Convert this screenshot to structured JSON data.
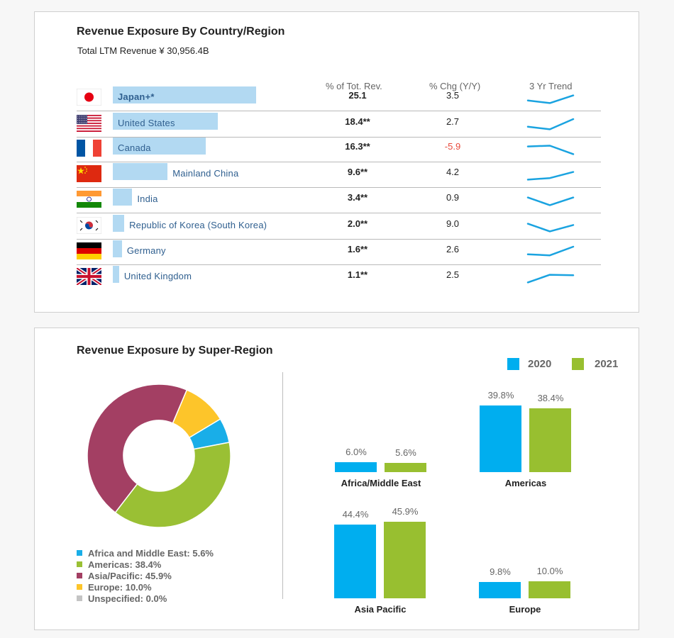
{
  "country_panel": {
    "title": "Revenue Exposure By Country/Region",
    "subtitle": "Total LTM Revenue ¥ 30,956.4B",
    "columns": {
      "pct": "% of Tot. Rev.",
      "chg": "% Chg (Y/Y)",
      "trend": "3 Yr Trend"
    },
    "trend_color": "#1aa3e0",
    "bar_color": "#b2d9f2"
  },
  "chart_data": [
    {
      "type": "table",
      "title": "Revenue Exposure By Country/Region",
      "subtitle": "Total LTM Revenue ¥ 30,956.4B",
      "columns": [
        "% of Tot. Rev.",
        "% Chg (Y/Y)",
        "3 Yr Trend"
      ],
      "rows": [
        {
          "country": "Japan+*",
          "flag": "japan-flag",
          "share": 25.1,
          "pct_label": "25.1",
          "chg_label": "3.5",
          "chg": 3.5,
          "trend": [
            2,
            1,
            4
          ]
        },
        {
          "country": "United States",
          "flag": "us-flag",
          "share": 18.4,
          "pct_label": "18.4**",
          "chg_label": "2.7",
          "chg": 2.7,
          "trend": [
            2,
            1,
            5
          ]
        },
        {
          "country": "Canada",
          "flag": "canada-flag",
          "share": 16.3,
          "pct_label": "16.3**",
          "chg_label": "-5.9",
          "chg": -5.9,
          "trend": [
            4,
            4.3,
            1
          ]
        },
        {
          "country": "Mainland China",
          "flag": "china-flag",
          "share": 9.6,
          "pct_label": "9.6**",
          "chg_label": "4.2",
          "chg": 4.2,
          "trend": [
            1,
            1.6,
            4
          ]
        },
        {
          "country": "India",
          "flag": "india-flag",
          "share": 3.4,
          "pct_label": "3.4**",
          "chg_label": "0.9",
          "chg": 0.9,
          "trend": [
            4,
            1,
            4
          ]
        },
        {
          "country": "Republic of Korea (South Korea)",
          "flag": "korea-flag",
          "share": 2.0,
          "pct_label": "2.0**",
          "chg_label": "9.0",
          "chg": 9.0,
          "trend": [
            4,
            1,
            3.5
          ]
        },
        {
          "country": "Germany",
          "flag": "germany-flag",
          "share": 1.6,
          "pct_label": "1.6**",
          "chg_label": "2.6",
          "chg": 2.6,
          "trend": [
            2,
            1.6,
            5
          ]
        },
        {
          "country": "United Kingdom",
          "flag": "uk-flag",
          "share": 1.1,
          "pct_label": "1.1**",
          "chg_label": "2.5",
          "chg": 2.5,
          "trend": [
            1,
            4,
            3.8
          ]
        }
      ]
    },
    {
      "type": "pie",
      "title": "Revenue Exposure by Super-Region",
      "slices": [
        {
          "label": "Africa and Middle East: 5.6%",
          "value": 5.6,
          "color": "#19aee8"
        },
        {
          "label": "Americas: 38.4%",
          "value": 38.4,
          "color": "#9ac034"
        },
        {
          "label": "Asia/Pacific: 45.9%",
          "value": 45.9,
          "color": "#a33f63"
        },
        {
          "label": "Europe: 10.0%",
          "value": 10.0,
          "color": "#fdc52a"
        },
        {
          "label": "Unspecified: 0.0%",
          "value": 0.0,
          "color": "#c4c4c4"
        }
      ]
    },
    {
      "type": "bar",
      "legend": {
        "placement": "top-right"
      },
      "series": [
        {
          "name": "2020",
          "color": "#00aeef"
        },
        {
          "name": "2021",
          "color": "#98bf30"
        }
      ],
      "groups": [
        {
          "label": "Africa/Middle East",
          "values": [
            6.0,
            5.6
          ],
          "labels": [
            "6.0%",
            "5.6%"
          ]
        },
        {
          "label": "Americas",
          "values": [
            39.8,
            38.4
          ],
          "labels": [
            "39.8%",
            "38.4%"
          ]
        },
        {
          "label": "Asia Pacific",
          "values": [
            44.4,
            45.9
          ],
          "labels": [
            "44.4%",
            "45.9%"
          ]
        },
        {
          "label": "Europe",
          "values": [
            9.8,
            10.0
          ],
          "labels": [
            "9.8%",
            "10.0%"
          ]
        }
      ]
    }
  ]
}
